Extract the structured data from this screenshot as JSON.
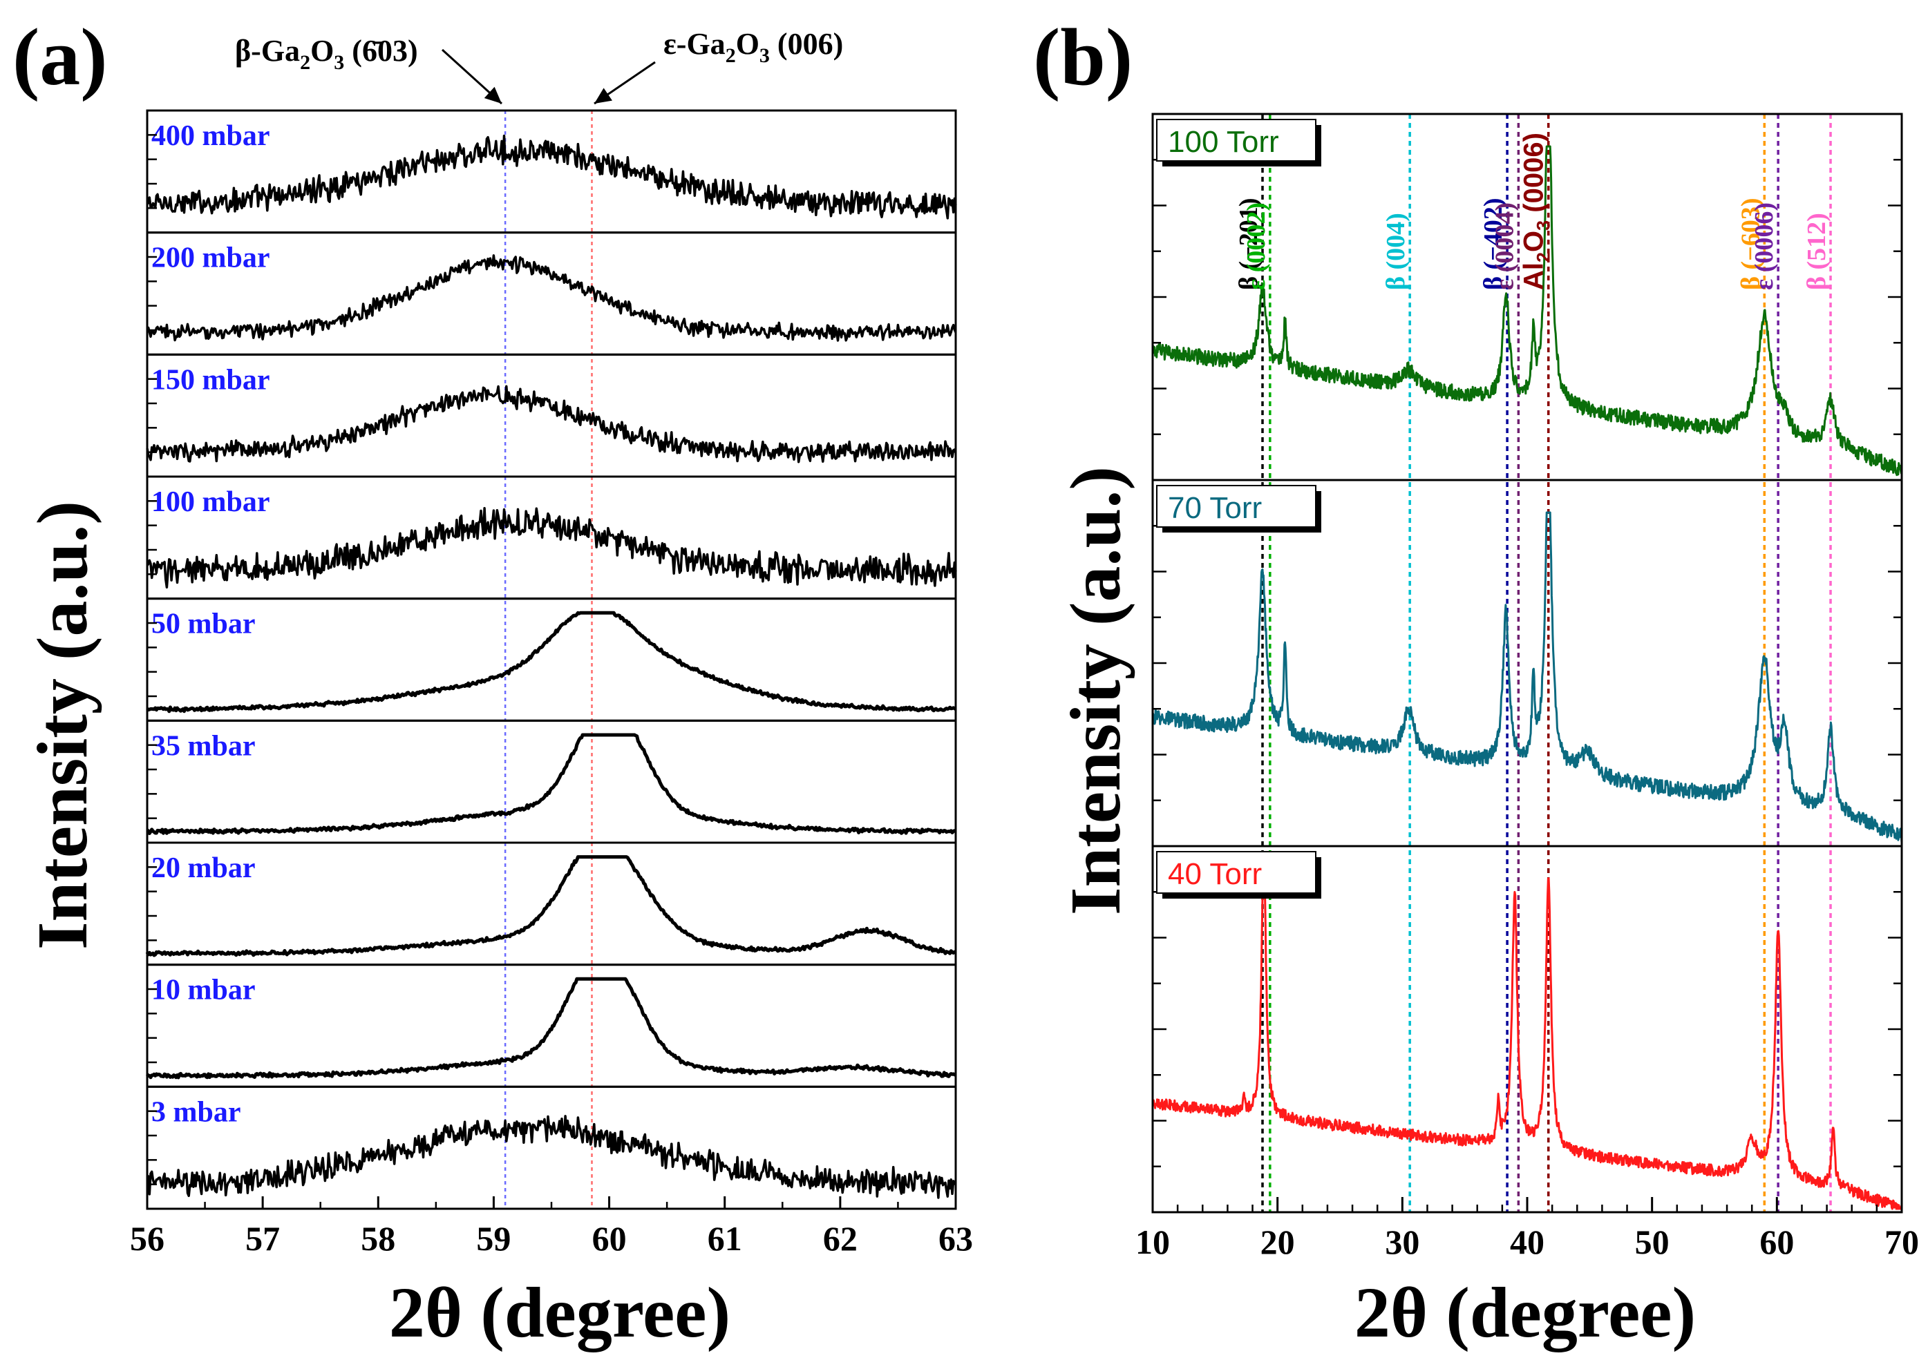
{
  "chart_data": [
    {
      "panel_label": "(a)",
      "type": "line",
      "xlabel": "2θ (degree)",
      "ylabel": "Intensity (a.u.)",
      "xlim": [
        56,
        63
      ],
      "x_ticks": [
        "56",
        "57",
        "58",
        "59",
        "60",
        "61",
        "62",
        "63"
      ],
      "line_color": "#000000",
      "label_color": "#1a1aff",
      "annotations": [
        {
          "text_main": "β-Ga",
          "sub1": "2",
          "mid": "O",
          "sub2": "3",
          "tail": " (6̄03)",
          "x": 59.1,
          "line_color": "#6a6aff"
        },
        {
          "text_main": "ε-Ga",
          "sub1": "2",
          "mid": "O",
          "sub2": "3",
          "tail": " (006)",
          "x": 59.85,
          "line_color": "#ff6a6a"
        }
      ],
      "series": [
        {
          "name": "400 mbar",
          "noise": 0.55,
          "base": 0.25,
          "peaks": [
            {
              "center": 59.15,
              "height": 0.48,
              "width": 1.05
            }
          ]
        },
        {
          "name": "200 mbar",
          "noise": 0.32,
          "base": 0.2,
          "peaks": [
            {
              "center": 59.05,
              "height": 0.62,
              "width": 0.75
            }
          ]
        },
        {
          "name": "150 mbar",
          "noise": 0.4,
          "base": 0.22,
          "peaks": [
            {
              "center": 59.0,
              "height": 0.5,
              "width": 0.8
            }
          ]
        },
        {
          "name": "100 mbar",
          "noise": 0.62,
          "base": 0.25,
          "peaks": [
            {
              "center": 59.2,
              "height": 0.42,
              "width": 0.9
            }
          ]
        },
        {
          "name": "50 mbar",
          "noise": 0.08,
          "base": 0.1,
          "peaks": [
            {
              "center": 59.85,
              "height": 0.5,
              "width": 0.35
            },
            {
              "center": 59.6,
              "height": 0.28,
              "width": 1.1
            },
            {
              "center": 60.4,
              "height": 0.2,
              "width": 0.6
            }
          ]
        },
        {
          "name": "35 mbar",
          "noise": 0.08,
          "base": 0.1,
          "peaks": [
            {
              "center": 59.9,
              "height": 0.6,
              "width": 0.25
            },
            {
              "center": 60.15,
              "height": 0.45,
              "width": 0.25
            },
            {
              "center": 59.7,
              "height": 0.2,
              "width": 1.0
            }
          ]
        },
        {
          "name": "20 mbar",
          "noise": 0.08,
          "base": 0.1,
          "peaks": [
            {
              "center": 59.85,
              "height": 0.62,
              "width": 0.28
            },
            {
              "center": 60.15,
              "height": 0.38,
              "width": 0.3
            },
            {
              "center": 59.6,
              "height": 0.15,
              "width": 1.0
            },
            {
              "center": 62.25,
              "height": 0.2,
              "width": 0.3
            }
          ]
        },
        {
          "name": "10 mbar",
          "noise": 0.08,
          "base": 0.1,
          "peaks": [
            {
              "center": 59.85,
              "height": 0.66,
              "width": 0.25
            },
            {
              "center": 60.1,
              "height": 0.42,
              "width": 0.25
            },
            {
              "center": 59.6,
              "height": 0.15,
              "width": 0.9
            },
            {
              "center": 62.1,
              "height": 0.07,
              "width": 0.4
            }
          ]
        },
        {
          "name": "3 mbar",
          "noise": 0.55,
          "base": 0.22,
          "peaks": [
            {
              "center": 59.3,
              "height": 0.5,
              "width": 1.1
            }
          ]
        }
      ]
    },
    {
      "panel_label": "(b)",
      "type": "line",
      "xlabel": "2θ (degree)",
      "ylabel": "Intensity (a.u.)",
      "xlim": [
        10,
        70
      ],
      "x_ticks": [
        "10",
        "20",
        "30",
        "40",
        "50",
        "60",
        "70"
      ],
      "reference_lines": [
        {
          "label": "β (−201)",
          "x": 18.8,
          "color": "#000000"
        },
        {
          "label": "ε (0002)",
          "x": 19.4,
          "color": "#00b000"
        },
        {
          "label": "β (004)",
          "x": 30.6,
          "color": "#00c0d0"
        },
        {
          "label": "β (−402)",
          "x": 38.4,
          "color": "#000099"
        },
        {
          "label": "ε (0004)",
          "x": 39.3,
          "color": "#702070"
        },
        {
          "label_main": "Al",
          "label_sub": "2",
          "label_mid": "O",
          "label_sub2": "3",
          "label_tail": " (0006)",
          "label": "Al2O3 (0006)",
          "x": 41.7,
          "color": "#8b0000"
        },
        {
          "label": "β (−603)",
          "x": 59.0,
          "color": "#ff9a00"
        },
        {
          "label": "ε (0006)",
          "x": 60.1,
          "color": "#7020a0"
        },
        {
          "label": "β (512)",
          "x": 64.3,
          "color": "#ff66cc"
        }
      ],
      "series": [
        {
          "name": "100 Torr",
          "color": "#0a6e0a",
          "noise": 0.02,
          "peaks": [
            {
              "center": 18.8,
              "height": 0.23,
              "width": 0.35
            },
            {
              "center": 20.6,
              "height": 0.14,
              "width": 0.12
            },
            {
              "center": 30.5,
              "height": 0.05,
              "width": 0.6
            },
            {
              "center": 38.3,
              "height": 0.32,
              "width": 0.3
            },
            {
              "center": 40.5,
              "height": 0.17,
              "width": 0.15
            },
            {
              "center": 41.7,
              "height": 0.98,
              "width": 0.3
            },
            {
              "center": 59.0,
              "height": 0.35,
              "width": 0.7
            },
            {
              "center": 60.6,
              "height": 0.05,
              "width": 0.4
            },
            {
              "center": 64.3,
              "height": 0.13,
              "width": 0.4
            }
          ]
        },
        {
          "name": "70 Torr",
          "color": "#0b6a80",
          "noise": 0.02,
          "peaks": [
            {
              "center": 18.8,
              "height": 0.47,
              "width": 0.35
            },
            {
              "center": 20.6,
              "height": 0.27,
              "width": 0.12
            },
            {
              "center": 30.5,
              "height": 0.13,
              "width": 0.5
            },
            {
              "center": 38.3,
              "height": 0.45,
              "width": 0.3
            },
            {
              "center": 40.5,
              "height": 0.22,
              "width": 0.15
            },
            {
              "center": 41.7,
              "height": 0.92,
              "width": 0.3
            },
            {
              "center": 44.8,
              "height": 0.07,
              "width": 0.7
            },
            {
              "center": 59.0,
              "height": 0.42,
              "width": 0.6
            },
            {
              "center": 60.6,
              "height": 0.2,
              "width": 0.4
            },
            {
              "center": 64.3,
              "height": 0.24,
              "width": 0.3
            }
          ]
        },
        {
          "name": "40 Torr",
          "color": "#ff1a1a",
          "noise": 0.015,
          "peaks": [
            {
              "center": 18.9,
              "height": 0.83,
              "width": 0.2
            },
            {
              "center": 17.3,
              "height": 0.06,
              "width": 0.1
            },
            {
              "center": 37.7,
              "height": 0.12,
              "width": 0.12
            },
            {
              "center": 39.0,
              "height": 0.74,
              "width": 0.25
            },
            {
              "center": 41.7,
              "height": 0.8,
              "width": 0.25
            },
            {
              "center": 58.0,
              "height": 0.1,
              "width": 0.5
            },
            {
              "center": 60.1,
              "height": 0.73,
              "width": 0.3
            },
            {
              "center": 64.5,
              "height": 0.18,
              "width": 0.15
            }
          ]
        }
      ]
    }
  ]
}
